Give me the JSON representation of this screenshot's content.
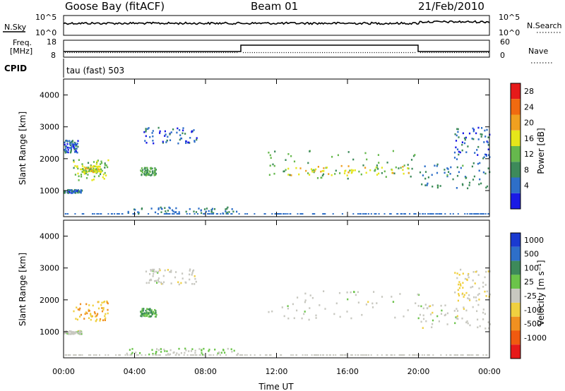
{
  "header": {
    "station": "Goose Bay (fitACF)",
    "beam": "Beam 01",
    "date": "21/Feb/2010"
  },
  "aux": {
    "nsky_label": "N.Sky",
    "nsearch_label": "N.Search",
    "freq_label_1": "Freq.",
    "freq_label_2": "[MHz]",
    "nave_label": "Nave",
    "cpid_label": "CPID",
    "cpid_value": "tau (fast) 503",
    "noise_left_ticks": [
      "10^5",
      "10^0"
    ],
    "noise_right_ticks": [
      "10^5",
      "10^0"
    ],
    "freq_ticks": [
      "18",
      "8"
    ],
    "nave_ticks": [
      "60",
      "0"
    ]
  },
  "axes": {
    "ylabel": "Slant Range [km]",
    "xlabel": "Time UT",
    "yticks": [
      "1000",
      "2000",
      "3000",
      "4000"
    ],
    "xticks": [
      "00:00",
      "04:00",
      "08:00",
      "12:00",
      "16:00",
      "20:00",
      "00:00"
    ]
  },
  "power_scale": {
    "label": "Power [dB]",
    "ticks": [
      "4",
      "8",
      "12",
      "16",
      "20",
      "24",
      "28"
    ],
    "colors": [
      "#1a1ae6",
      "#2e6fc9",
      "#3d8a5a",
      "#66b84d",
      "#e6e61a",
      "#f0a020",
      "#f06a10",
      "#e61a1a"
    ]
  },
  "velocity_scale": {
    "label": "Velocity [m s⁻¹]",
    "ticks": [
      "1000",
      "500",
      "100",
      "25",
      "-25",
      "-100",
      "-500",
      "-1000"
    ],
    "colors": [
      "#1a3ad0",
      "#2e6fc9",
      "#3d8a5a",
      "#6bc44a",
      "#c8c8c0",
      "#f0d040",
      "#f09020",
      "#f05a10",
      "#e61a1a"
    ]
  },
  "chart_data": [
    {
      "type": "heatmap",
      "title": "Power",
      "xlabel": "Time UT",
      "ylabel": "Slant Range [km]",
      "xlim_hours": [
        0,
        24
      ],
      "ylim_km": [
        180,
        4500
      ],
      "colorbar": "Power [dB]",
      "scatter_regions": [
        {
          "t": [
            0.0,
            0.8
          ],
          "r": [
            2200,
            2600
          ],
          "db": 6
        },
        {
          "t": [
            0.5,
            2.5
          ],
          "r": [
            1350,
            2000
          ],
          "db": 14
        },
        {
          "t": [
            1.0,
            2.2
          ],
          "r": [
            1600,
            1800
          ],
          "db": 18
        },
        {
          "t": [
            0.0,
            1.0
          ],
          "r": [
            950,
            1050
          ],
          "db": 7
        },
        {
          "t": [
            4.3,
            5.2
          ],
          "r": [
            1500,
            1750
          ],
          "db": 12
        },
        {
          "t": [
            4.5,
            7.5
          ],
          "r": [
            2500,
            3000
          ],
          "db": 6
        },
        {
          "t": [
            3.5,
            9.8
          ],
          "r": [
            300,
            500
          ],
          "db": 8
        },
        {
          "t": [
            11.5,
            20.0
          ],
          "r": [
            1400,
            2300
          ],
          "db": 12
        },
        {
          "t": [
            12.5,
            19.5
          ],
          "r": [
            1500,
            1800
          ],
          "db": 18
        },
        {
          "t": [
            20.0,
            24.0
          ],
          "r": [
            1100,
            1900
          ],
          "db": 9
        },
        {
          "t": [
            22.0,
            24.0
          ],
          "r": [
            2000,
            3000
          ],
          "db": 6
        }
      ]
    },
    {
      "type": "heatmap",
      "title": "Velocity",
      "xlabel": "Time UT",
      "ylabel": "Slant Range [km]",
      "xlim_hours": [
        0,
        24
      ],
      "ylim_km": [
        180,
        4500
      ],
      "colorbar": "Velocity [m s-1]",
      "scatter_regions": [
        {
          "t": [
            0.5,
            2.5
          ],
          "r": [
            1350,
            2000
          ],
          "v": -100
        },
        {
          "t": [
            0.0,
            1.0
          ],
          "r": [
            950,
            1050
          ],
          "v": 0
        },
        {
          "t": [
            4.3,
            5.2
          ],
          "r": [
            1500,
            1750
          ],
          "v": 100
        },
        {
          "t": [
            4.5,
            7.5
          ],
          "r": [
            2500,
            3000
          ],
          "v": 0
        },
        {
          "t": [
            3.5,
            9.8
          ],
          "r": [
            300,
            500
          ],
          "v": 30
        },
        {
          "t": [
            11.5,
            20.0
          ],
          "r": [
            1400,
            2300
          ],
          "v": 0
        },
        {
          "t": [
            20.0,
            24.0
          ],
          "r": [
            1100,
            1900
          ],
          "v": 0
        },
        {
          "t": [
            22.0,
            24.0
          ],
          "r": [
            2000,
            3000
          ],
          "v": -25
        }
      ]
    }
  ]
}
